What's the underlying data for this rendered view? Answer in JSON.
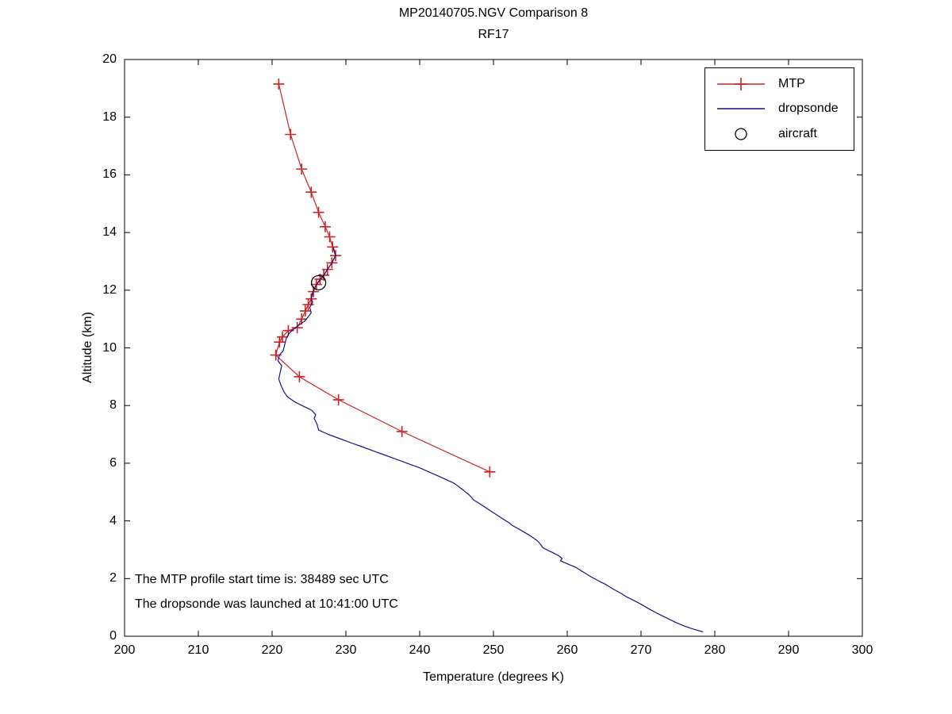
{
  "page": {
    "background": "#ffffff"
  },
  "chart_data": {
    "type": "line",
    "title": "MP20140705.NGV Comparison 8",
    "subtitle": "RF17",
    "xlabel": "Temperature (degrees K)",
    "ylabel": "Altitude (km)",
    "xlim": [
      200,
      300
    ],
    "ylim": [
      0,
      20
    ],
    "x_ticks": [
      200,
      210,
      220,
      230,
      240,
      250,
      260,
      270,
      280,
      290,
      300
    ],
    "y_ticks": [
      0,
      2,
      4,
      6,
      8,
      10,
      12,
      14,
      16,
      18,
      20
    ],
    "grid": false,
    "frame": "box-with-mirrored-inward-ticks",
    "legend_position": "top-right",
    "colors": {
      "mtp": "#cc2222",
      "dropsonde": "#14148c",
      "aircraft": "#000000"
    },
    "legend": {
      "items": [
        {
          "label": "MTP",
          "marker": "plus-on-line",
          "color": "#cc2222"
        },
        {
          "label": "dropsonde",
          "marker": "line",
          "color": "#14148c"
        },
        {
          "label": "aircraft",
          "marker": "open-circle",
          "color": "#000000"
        }
      ]
    },
    "annotations": {
      "line1": "The MTP profile start time is: 38489 sec UTC",
      "line2": "The dropsonde was launched at 10:41:00 UTC"
    },
    "series": [
      {
        "name": "MTP",
        "color": "#cc2222",
        "marker": "plus",
        "points": [
          [
            220.9,
            19.15
          ],
          [
            222.5,
            17.4
          ],
          [
            224.0,
            16.2
          ],
          [
            225.3,
            15.4
          ],
          [
            226.3,
            14.7
          ],
          [
            227.2,
            14.2
          ],
          [
            227.8,
            13.85
          ],
          [
            228.2,
            13.5
          ],
          [
            228.6,
            13.2
          ],
          [
            228.1,
            12.95
          ],
          [
            227.5,
            12.72
          ],
          [
            227.0,
            12.52
          ],
          [
            226.5,
            12.38
          ],
          [
            226.0,
            12.2
          ],
          [
            225.6,
            11.95
          ],
          [
            225.3,
            11.7
          ],
          [
            224.9,
            11.5
          ],
          [
            224.5,
            11.28
          ],
          [
            224.0,
            11.0
          ],
          [
            223.4,
            10.7
          ],
          [
            222.2,
            10.6
          ],
          [
            221.4,
            10.38
          ],
          [
            221.0,
            10.2
          ],
          [
            220.5,
            9.75
          ],
          [
            223.7,
            9.0
          ],
          [
            229.0,
            8.2
          ],
          [
            237.6,
            7.1
          ],
          [
            249.5,
            5.7
          ]
        ]
      },
      {
        "name": "dropsonde",
        "color": "#14148c",
        "marker": "none",
        "points": [
          [
            228.3,
            13.48
          ],
          [
            228.6,
            13.2
          ],
          [
            228.1,
            12.95
          ],
          [
            227.5,
            12.72
          ],
          [
            227.0,
            12.52
          ],
          [
            226.4,
            12.32
          ],
          [
            225.9,
            12.15
          ],
          [
            225.5,
            11.92
          ],
          [
            225.3,
            11.72
          ],
          [
            225.5,
            11.58
          ],
          [
            225.1,
            11.4
          ],
          [
            225.3,
            11.22
          ],
          [
            224.9,
            11.08
          ],
          [
            224.5,
            10.95
          ],
          [
            223.7,
            10.8
          ],
          [
            222.9,
            10.65
          ],
          [
            222.3,
            10.5
          ],
          [
            221.9,
            10.32
          ],
          [
            221.7,
            10.1
          ],
          [
            221.5,
            9.9
          ],
          [
            221.0,
            9.75
          ],
          [
            220.8,
            9.55
          ],
          [
            221.3,
            9.38
          ],
          [
            221.1,
            9.15
          ],
          [
            220.9,
            8.92
          ],
          [
            221.2,
            8.7
          ],
          [
            221.6,
            8.48
          ],
          [
            222.1,
            8.3
          ],
          [
            223.1,
            8.12
          ],
          [
            224.3,
            7.97
          ],
          [
            225.4,
            7.83
          ],
          [
            225.9,
            7.68
          ],
          [
            225.7,
            7.55
          ],
          [
            226.1,
            7.35
          ],
          [
            226.3,
            7.15
          ],
          [
            227.6,
            7.0
          ],
          [
            229.2,
            6.85
          ],
          [
            230.8,
            6.7
          ],
          [
            232.3,
            6.56
          ],
          [
            233.7,
            6.43
          ],
          [
            235.1,
            6.3
          ],
          [
            236.7,
            6.15
          ],
          [
            238.3,
            6.0
          ],
          [
            240.0,
            5.84
          ],
          [
            241.6,
            5.66
          ],
          [
            243.2,
            5.48
          ],
          [
            244.7,
            5.3
          ],
          [
            246.0,
            5.05
          ],
          [
            246.8,
            4.88
          ],
          [
            247.3,
            4.73
          ],
          [
            248.6,
            4.52
          ],
          [
            249.9,
            4.3
          ],
          [
            251.1,
            4.1
          ],
          [
            252.2,
            3.92
          ],
          [
            252.5,
            3.85
          ],
          [
            253.7,
            3.68
          ],
          [
            254.9,
            3.5
          ],
          [
            256.0,
            3.3
          ],
          [
            256.4,
            3.18
          ],
          [
            256.7,
            3.07
          ],
          [
            257.9,
            2.92
          ],
          [
            258.8,
            2.8
          ],
          [
            259.3,
            2.7
          ],
          [
            259.1,
            2.62
          ],
          [
            260.1,
            2.5
          ],
          [
            261.1,
            2.4
          ],
          [
            262.2,
            2.22
          ],
          [
            263.3,
            2.05
          ],
          [
            264.4,
            1.9
          ],
          [
            265.2,
            1.8
          ],
          [
            266.2,
            1.64
          ],
          [
            267.2,
            1.5
          ],
          [
            268.1,
            1.36
          ],
          [
            269.2,
            1.22
          ],
          [
            270.2,
            1.08
          ],
          [
            271.2,
            0.93
          ],
          [
            272.3,
            0.78
          ],
          [
            273.5,
            0.63
          ],
          [
            274.7,
            0.48
          ],
          [
            275.9,
            0.35
          ],
          [
            277.2,
            0.24
          ],
          [
            278.4,
            0.15
          ]
        ]
      },
      {
        "name": "aircraft",
        "color": "#000000",
        "marker": "circle",
        "points": [
          [
            226.3,
            12.26
          ]
        ]
      }
    ]
  }
}
